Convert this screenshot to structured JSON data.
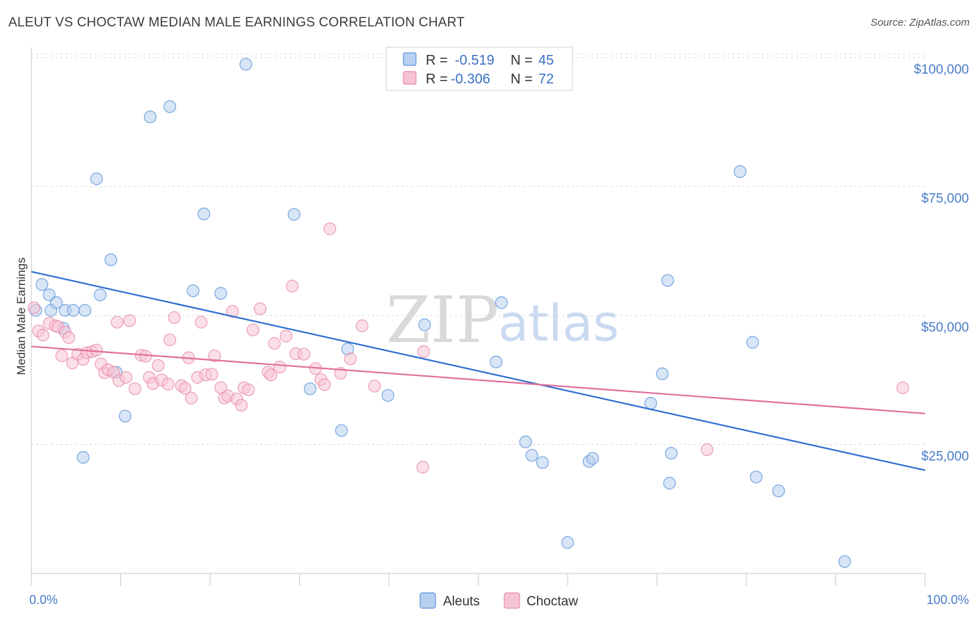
{
  "title": "ALEUT VS CHOCTAW MEDIAN MALE EARNINGS CORRELATION CHART",
  "source": "Source: ZipAtlas.com",
  "watermark": {
    "zip": "ZIP",
    "atlas": "atlas"
  },
  "colors": {
    "aleut": "#5b93d9",
    "aleut_fill": "#b8d0f0",
    "aleut_line": "#2f6fd0",
    "choctaw": "#e98aa8",
    "choctaw_fill": "#f7c4d4",
    "choctaw_line": "#e0709a",
    "tick_text": "#4a7cc9",
    "grid": "#d8d8d8"
  },
  "legend": {
    "rows": [
      {
        "r_label": "R = ",
        "r_value": "-0.519",
        "n_label": "N = ",
        "n_value": "45"
      },
      {
        "r_label": "R = ",
        "r_value": "-0.306",
        "n_label": "N = ",
        "n_value": "72"
      }
    ]
  },
  "chart_data": {
    "type": "scatter",
    "title": "ALEUT VS CHOCTAW MEDIAN MALE EARNINGS CORRELATION CHART",
    "xlabel": "",
    "ylabel": "Median Male Earnings",
    "xlim": [
      0,
      100
    ],
    "ylim": [
      0,
      102000
    ],
    "x_tick_labels": [
      "0.0%",
      "100.0%"
    ],
    "y_ticks": [
      25000,
      50000,
      75000,
      100000
    ],
    "y_tick_labels": [
      "$25,000",
      "$50,000",
      "$75,000",
      "$100,000"
    ],
    "grid": "horizontal dashed",
    "legend_position": "top-center",
    "series": [
      {
        "name": "Aleuts",
        "points": [
          [
            0.5,
            51000
          ],
          [
            1.2,
            56000
          ],
          [
            2.0,
            54000
          ],
          [
            2.2,
            51000
          ],
          [
            2.8,
            52500
          ],
          [
            3.6,
            47500
          ],
          [
            3.8,
            51000
          ],
          [
            4.7,
            51000
          ],
          [
            6.0,
            51000
          ],
          [
            5.8,
            22500
          ],
          [
            7.3,
            76500
          ],
          [
            7.7,
            54000
          ],
          [
            8.9,
            60800
          ],
          [
            9.5,
            39000
          ],
          [
            10.5,
            30500
          ],
          [
            13.3,
            88500
          ],
          [
            15.5,
            90500
          ],
          [
            18.1,
            54800
          ],
          [
            19.3,
            69700
          ],
          [
            21.2,
            54300
          ],
          [
            24.0,
            98700
          ],
          [
            29.4,
            69600
          ],
          [
            31.2,
            35800
          ],
          [
            34.7,
            27700
          ],
          [
            35.4,
            43500
          ],
          [
            39.9,
            34500
          ],
          [
            44.0,
            48200
          ],
          [
            52.6,
            52500
          ],
          [
            55.3,
            25500
          ],
          [
            56.0,
            22900
          ],
          [
            57.2,
            21500
          ],
          [
            60.0,
            6000
          ],
          [
            62.4,
            21700
          ],
          [
            62.8,
            22300
          ],
          [
            69.3,
            33000
          ],
          [
            70.6,
            38700
          ],
          [
            71.2,
            56800
          ],
          [
            71.6,
            23300
          ],
          [
            71.4,
            17500
          ],
          [
            79.3,
            77900
          ],
          [
            80.7,
            44800
          ],
          [
            81.1,
            18700
          ],
          [
            83.6,
            16000
          ],
          [
            91.0,
            2300
          ],
          [
            52.0,
            41000
          ]
        ]
      },
      {
        "name": "Choctaw",
        "points": [
          [
            0.3,
            51500
          ],
          [
            0.8,
            47000
          ],
          [
            1.3,
            46200
          ],
          [
            2.0,
            48500
          ],
          [
            2.7,
            48000
          ],
          [
            3.0,
            47800
          ],
          [
            3.4,
            42200
          ],
          [
            3.8,
            46800
          ],
          [
            4.2,
            45700
          ],
          [
            4.6,
            40800
          ],
          [
            5.2,
            42500
          ],
          [
            5.8,
            41500
          ],
          [
            6.2,
            42800
          ],
          [
            6.8,
            43000
          ],
          [
            7.3,
            43300
          ],
          [
            7.8,
            40600
          ],
          [
            8.2,
            38900
          ],
          [
            8.6,
            39500
          ],
          [
            9.2,
            39000
          ],
          [
            9.6,
            48700
          ],
          [
            9.8,
            37400
          ],
          [
            10.6,
            38000
          ],
          [
            11.0,
            49000
          ],
          [
            11.6,
            35800
          ],
          [
            12.3,
            42300
          ],
          [
            12.8,
            42100
          ],
          [
            13.2,
            38000
          ],
          [
            13.6,
            36800
          ],
          [
            14.2,
            40300
          ],
          [
            14.6,
            37500
          ],
          [
            15.3,
            36700
          ],
          [
            15.5,
            45300
          ],
          [
            16.0,
            49600
          ],
          [
            16.8,
            36400
          ],
          [
            17.2,
            35900
          ],
          [
            17.6,
            41800
          ],
          [
            17.9,
            34000
          ],
          [
            18.6,
            38000
          ],
          [
            19.0,
            48700
          ],
          [
            19.5,
            38500
          ],
          [
            20.2,
            38600
          ],
          [
            20.5,
            42200
          ],
          [
            21.2,
            36000
          ],
          [
            21.6,
            34000
          ],
          [
            22.0,
            34400
          ],
          [
            22.5,
            50800
          ],
          [
            23.0,
            33800
          ],
          [
            23.5,
            32600
          ],
          [
            23.8,
            36000
          ],
          [
            24.3,
            35600
          ],
          [
            24.8,
            47200
          ],
          [
            25.6,
            51300
          ],
          [
            26.5,
            39000
          ],
          [
            26.8,
            38500
          ],
          [
            27.2,
            44600
          ],
          [
            27.8,
            40000
          ],
          [
            28.5,
            46000
          ],
          [
            29.2,
            55700
          ],
          [
            29.6,
            42600
          ],
          [
            30.5,
            42500
          ],
          [
            31.8,
            39700
          ],
          [
            32.4,
            37600
          ],
          [
            32.8,
            36600
          ],
          [
            33.4,
            66800
          ],
          [
            34.6,
            38800
          ],
          [
            35.7,
            41600
          ],
          [
            37.0,
            48000
          ],
          [
            38.4,
            36300
          ],
          [
            43.8,
            20600
          ],
          [
            43.9,
            43000
          ],
          [
            75.6,
            24000
          ],
          [
            97.5,
            36000
          ]
        ]
      }
    ],
    "trend_lines": [
      {
        "series": "Aleuts",
        "from": [
          0,
          58500
        ],
        "to": [
          100,
          20000
        ]
      },
      {
        "series": "Choctaw",
        "from": [
          0,
          44000
        ],
        "to": [
          100,
          31000
        ]
      }
    ]
  }
}
